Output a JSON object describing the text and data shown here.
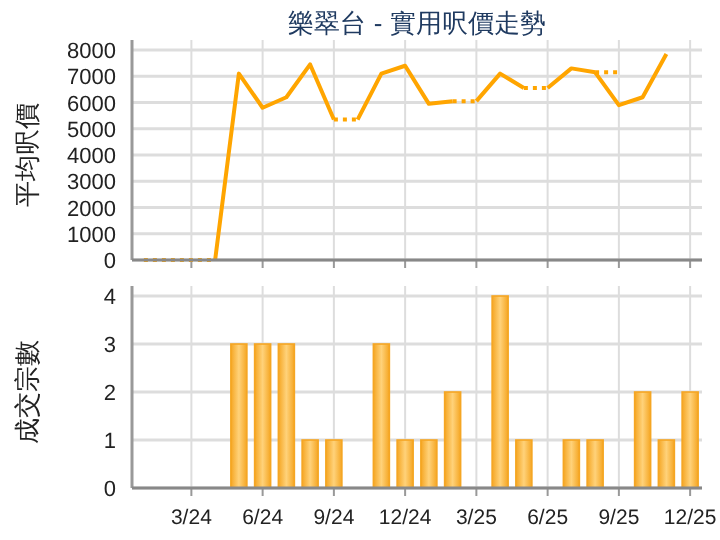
{
  "chart_data": [
    {
      "type": "line",
      "title": "樂翠台 - 實用呎價走勢",
      "ylabel": "平均呎價",
      "categories": [
        null,
        null,
        null,
        null,
        null,
        null,
        null,
        null,
        null,
        null,
        null,
        null,
        null,
        null,
        null,
        null,
        null,
        null,
        null,
        null,
        null,
        null,
        null,
        null
      ],
      "series": [
        {
          "color": "#ffa500",
          "line_style": "solid",
          "values": [
            null,
            null,
            null,
            0,
            7100,
            5800,
            6200,
            7450,
            5350,
            null,
            null,
            null,
            null,
            null,
            null,
            null,
            null,
            null,
            null,
            null,
            null,
            null,
            null,
            null
          ]
        },
        {
          "color": "#ffa500",
          "line_style": "solid",
          "values": [
            null,
            null,
            null,
            null,
            null,
            null,
            null,
            null,
            null,
            5350,
            7100,
            7400,
            5950,
            6050,
            null,
            null,
            null,
            null,
            null,
            null,
            null,
            null,
            null,
            null
          ]
        },
        {
          "color": "#ffa500",
          "line_style": "solid",
          "values": [
            null,
            null,
            null,
            null,
            null,
            null,
            null,
            null,
            null,
            null,
            null,
            null,
            null,
            null,
            6050,
            7100,
            6550,
            null,
            null,
            null,
            null,
            null,
            null,
            null
          ]
        },
        {
          "color": "#ffa500",
          "line_style": "solid",
          "values": [
            null,
            null,
            null,
            null,
            null,
            null,
            null,
            null,
            null,
            null,
            null,
            null,
            null,
            null,
            null,
            null,
            null,
            6550,
            7300,
            7150,
            null,
            null,
            null,
            null
          ]
        },
        {
          "color": "#ffa500",
          "line_style": "solid",
          "values": [
            null,
            null,
            null,
            null,
            null,
            null,
            null,
            null,
            null,
            null,
            null,
            null,
            null,
            null,
            null,
            null,
            null,
            null,
            null,
            7150,
            5900,
            6200,
            7850,
            null
          ]
        },
        {
          "color": "#ffa500",
          "line_style": "dotted",
          "values": [
            0,
            0,
            0,
            0,
            null,
            null,
            null,
            null,
            5350,
            5350,
            null,
            null,
            null,
            6050,
            6050,
            null,
            6550,
            6550,
            null,
            7150,
            7150,
            null,
            null,
            null
          ]
        }
      ],
      "ylim": [
        0,
        8000
      ],
      "yticks": [
        0,
        1000,
        2000,
        3000,
        4000,
        5000,
        6000,
        7000,
        8000
      ],
      "grid": true,
      "tick_labels": "y"
    },
    {
      "type": "bar",
      "ylabel": "成交宗數",
      "categories": [
        null,
        null,
        "3/24",
        null,
        null,
        "6/24",
        null,
        null,
        "9/24",
        null,
        null,
        "12/24",
        null,
        null,
        "3/25",
        null,
        null,
        "6/25",
        null,
        null,
        "9/25",
        null,
        null,
        "12/25"
      ],
      "values": [
        0,
        0,
        0,
        0,
        3,
        3,
        3,
        1,
        1,
        0,
        3,
        1,
        1,
        2,
        0,
        4,
        1,
        0,
        1,
        1,
        0,
        2,
        1,
        2
      ],
      "color": "#f5a623",
      "ylim": [
        0,
        4
      ],
      "yticks": [
        0,
        1,
        2,
        3,
        4
      ],
      "grid": true
    }
  ]
}
